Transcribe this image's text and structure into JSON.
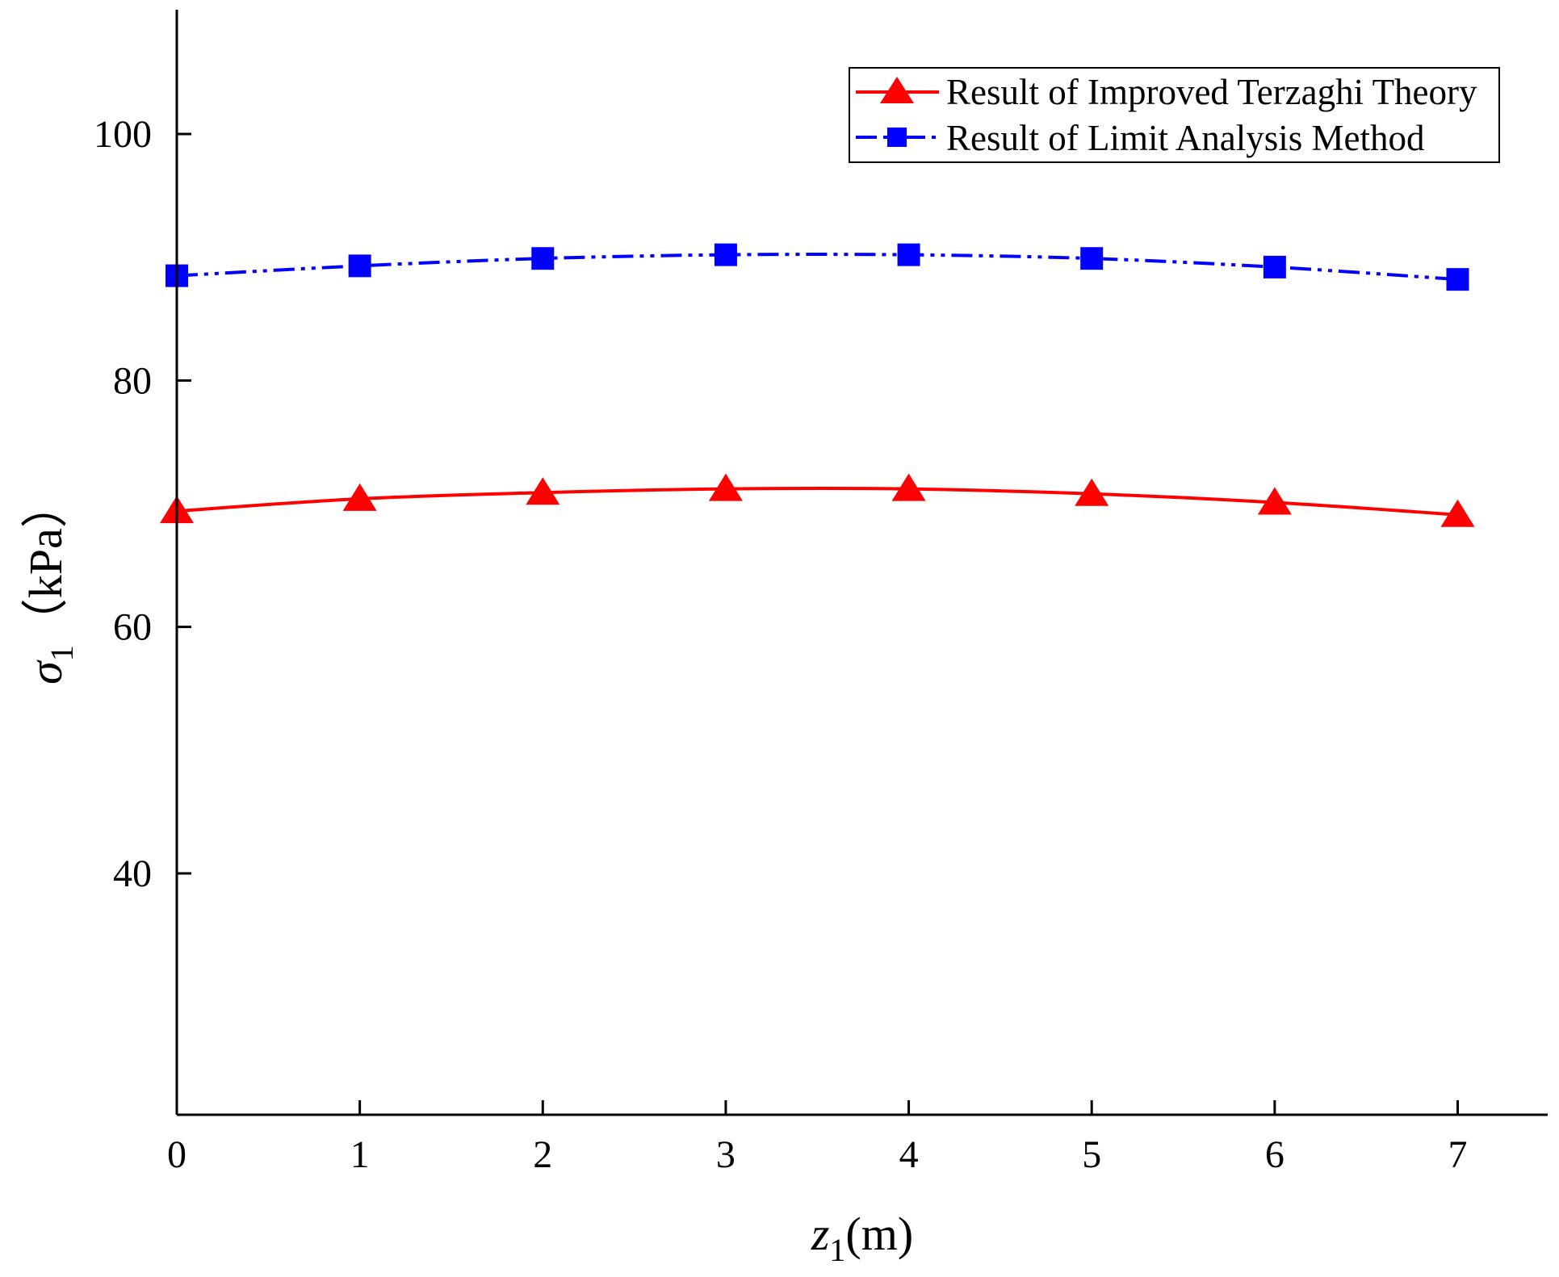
{
  "chart_data": {
    "type": "line",
    "x": [
      0,
      1,
      2,
      3,
      4,
      5,
      6,
      7
    ],
    "series": [
      {
        "name": "Result of Improved Terzaghi Theory",
        "values": [
          69.4,
          70.4,
          70.9,
          71.2,
          71.2,
          70.8,
          70.1,
          69.1
        ],
        "color": "#ff0000",
        "marker": "triangle",
        "line_style": "solid"
      },
      {
        "name": "Result of Limit Analysis Method",
        "values": [
          88.5,
          89.3,
          89.9,
          90.2,
          90.2,
          89.9,
          89.2,
          88.2
        ],
        "color": "#0000ff",
        "marker": "square",
        "line_style": "dash-dot-dot"
      }
    ],
    "xlim": [
      0,
      7.5
    ],
    "ylim": [
      20.5,
      110
    ],
    "xticks": [
      "0",
      "1",
      "2",
      "3",
      "4",
      "5",
      "6",
      "7"
    ],
    "yticks": [
      {
        "value": 40,
        "label": "40"
      },
      {
        "value": 60,
        "label": "60"
      },
      {
        "value": 80,
        "label": "80"
      },
      {
        "value": 100,
        "label": "100"
      }
    ],
    "xlabel": {
      "var": "z",
      "sub": "1",
      "unit": "(m)"
    },
    "ylabel": {
      "var": "σ",
      "sub": "1",
      "unit": "（kPa）"
    },
    "grid": false,
    "legend_position": "top-right"
  }
}
